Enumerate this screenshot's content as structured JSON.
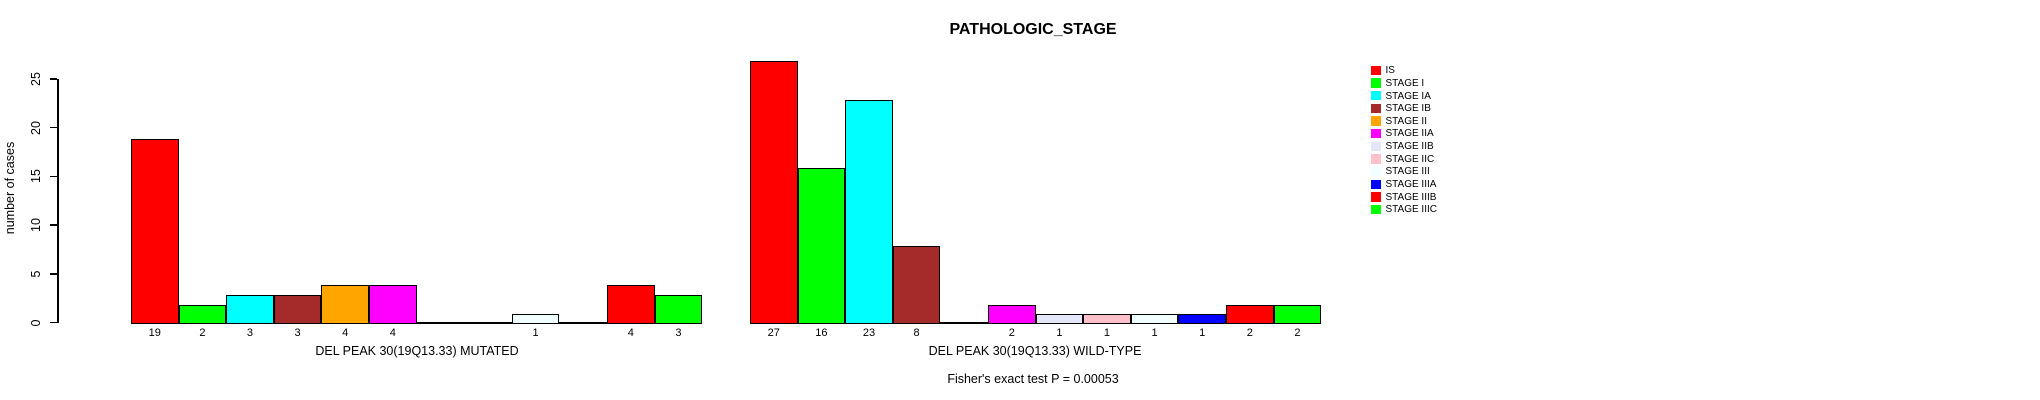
{
  "chart_data": {
    "type": "bar",
    "title": "PATHOLOGIC_STAGE",
    "ylabel": "number of cases",
    "xlabel": "",
    "ylim": [
      0,
      27
    ],
    "yticks": [
      0,
      5,
      10,
      15,
      20,
      25
    ],
    "grid": false,
    "bar_value_labels": true,
    "legend_position": "right-outside",
    "categories": [
      "IS",
      "STAGE I",
      "STAGE IA",
      "STAGE IB",
      "STAGE II",
      "STAGE IIA",
      "STAGE IIB",
      "STAGE IIC",
      "STAGE III",
      "STAGE IIIA",
      "STAGE IIIB",
      "STAGE IIIC"
    ],
    "colors": [
      "#FF0000",
      "#00FF00",
      "#00FFFF",
      "#A52A2A",
      "#FFA500",
      "#FF00FF",
      "#E6E6FA",
      "#FFC0CB",
      "#F0FFFF",
      "#0000FF",
      "#FF0000",
      "#00FF00"
    ],
    "series": [
      {
        "name": "DEL PEAK 30(19Q13.33) MUTATED",
        "values": [
          19,
          2,
          3,
          3,
          4,
          4,
          0,
          0,
          1,
          0,
          4,
          3
        ]
      },
      {
        "name": "DEL PEAK 30(19Q13.33) WILD-TYPE",
        "values": [
          27,
          16,
          23,
          8,
          0,
          2,
          1,
          1,
          1,
          1,
          2,
          2
        ]
      }
    ],
    "annotation": "Fisher's exact test P = 0.00053"
  }
}
